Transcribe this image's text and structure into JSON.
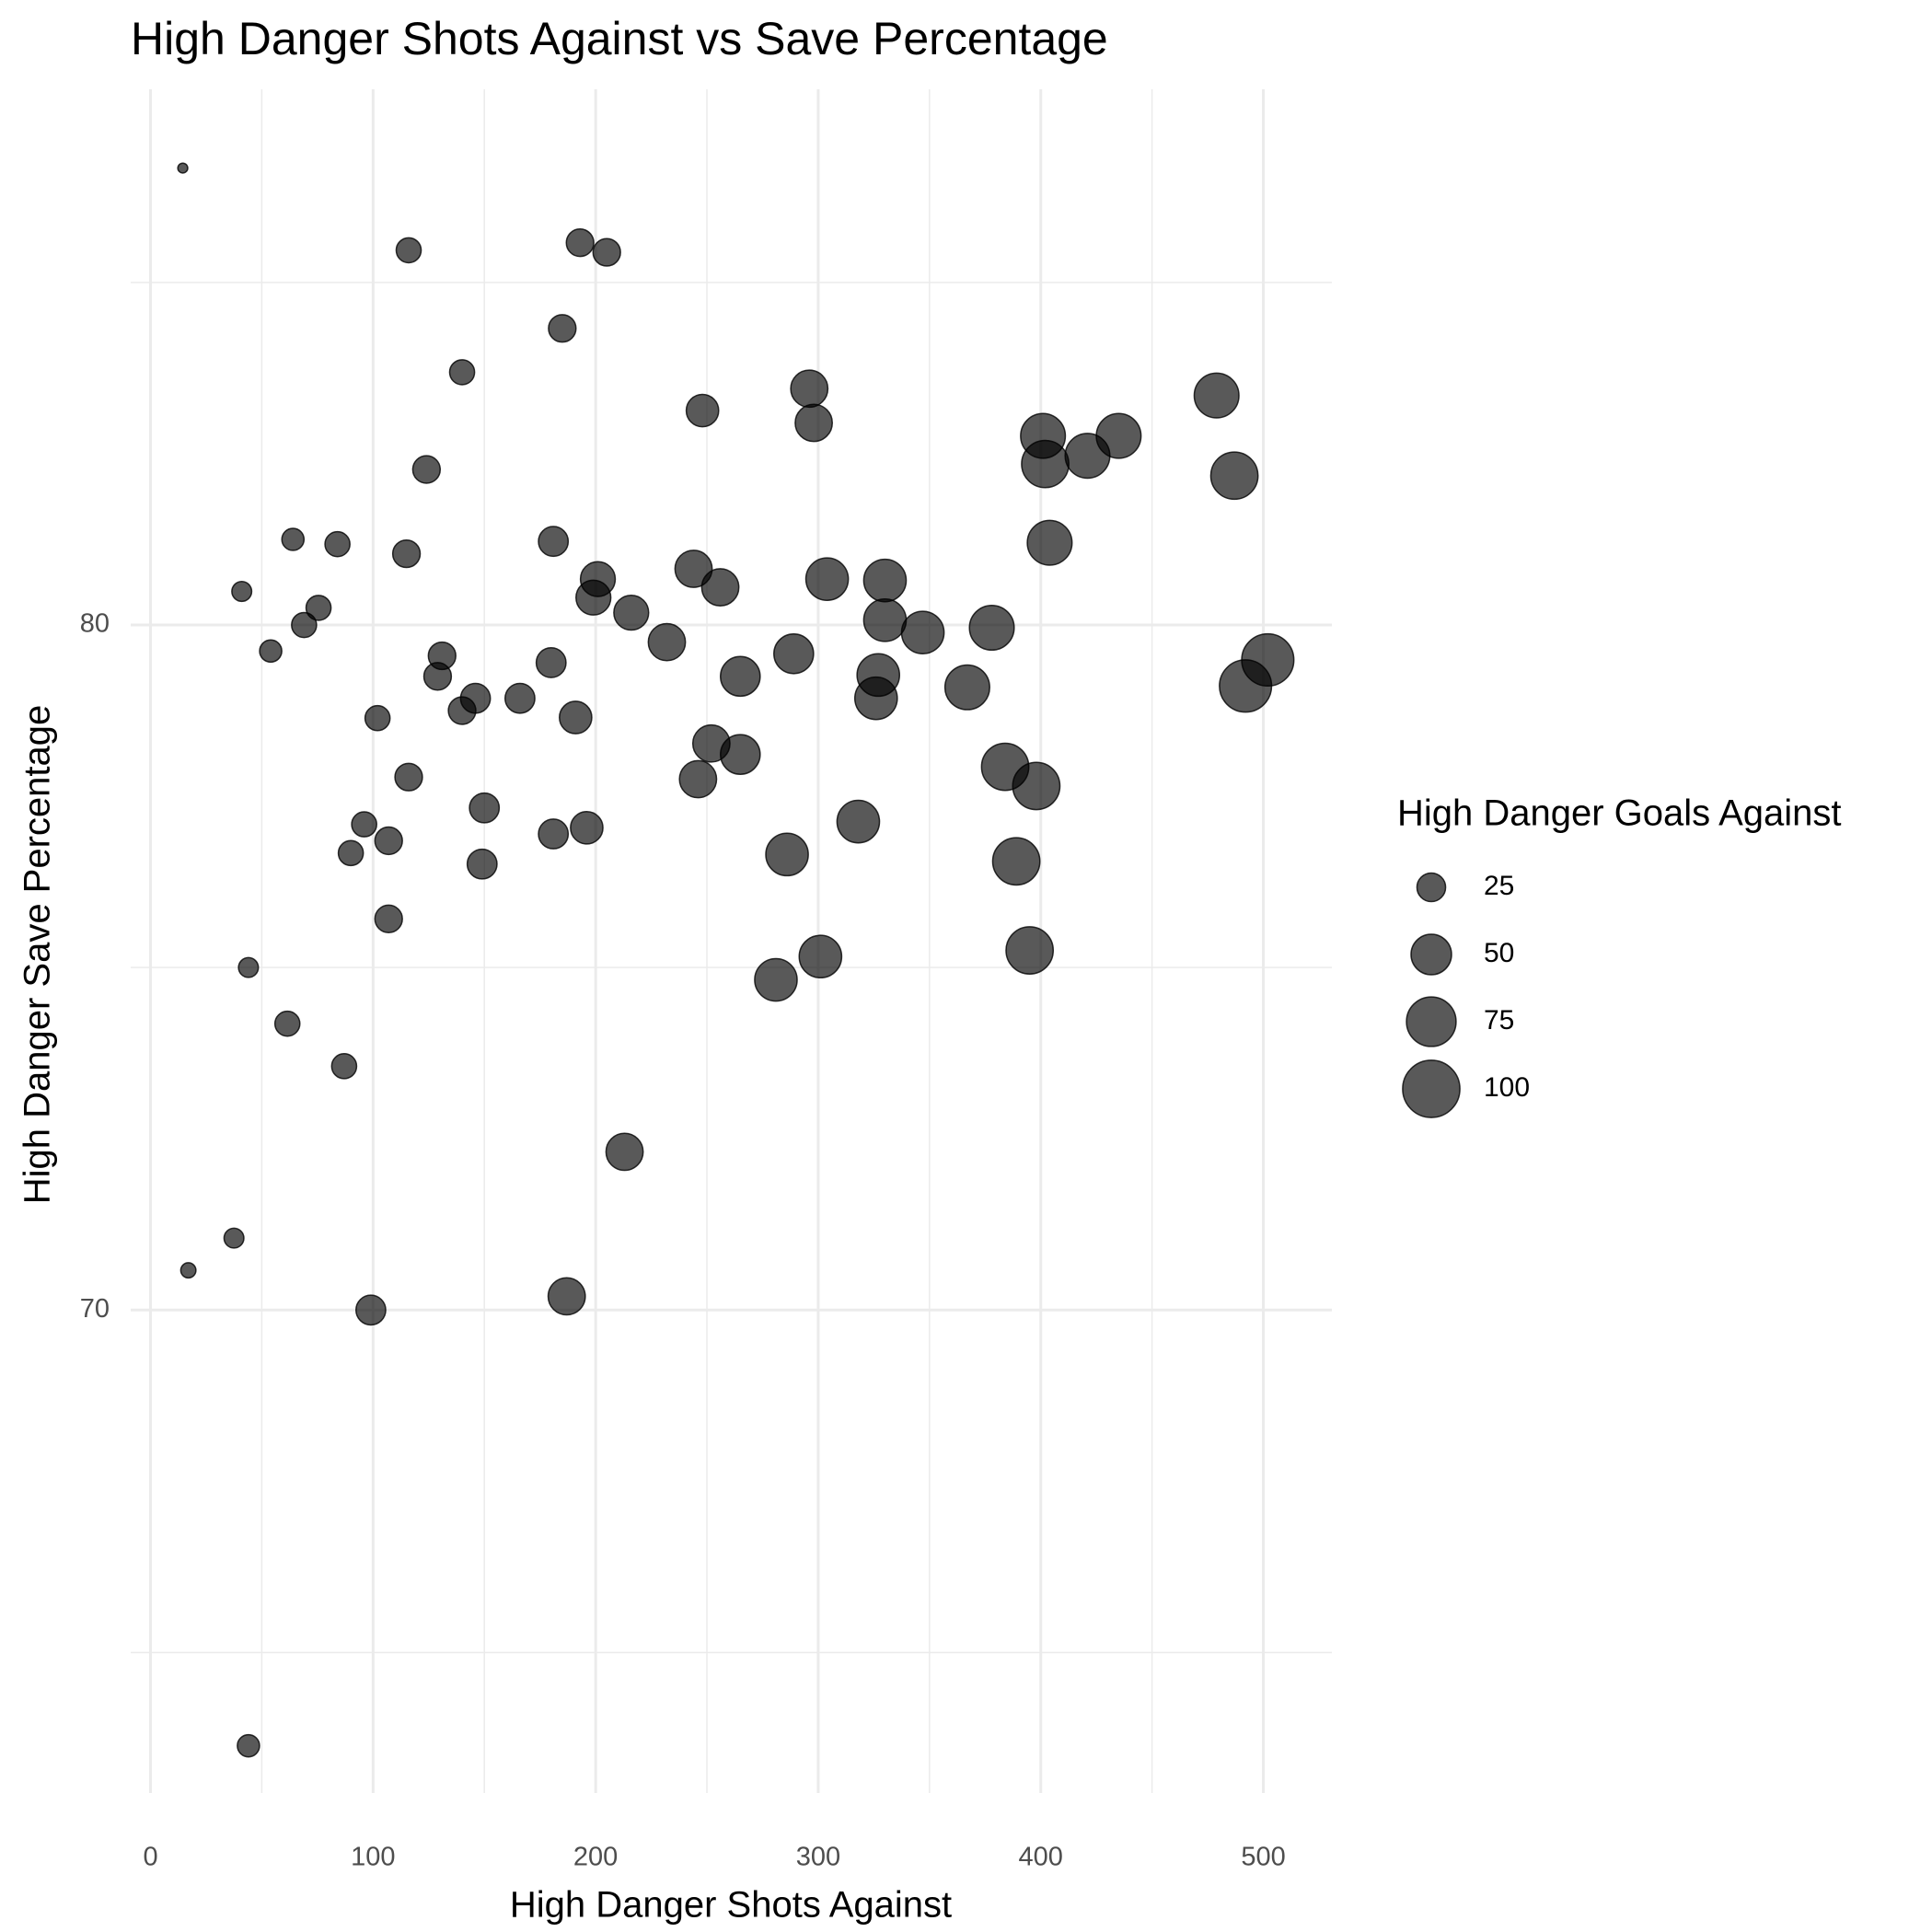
{
  "chart_data": {
    "type": "scatter",
    "title": "High Danger Shots Against vs Save Percentage",
    "x_label": "High Danger Shots Against",
    "y_label": "High Danger Save Percentage",
    "legend_title": "High Danger Goals Against",
    "color": "#000000",
    "alpha": 0.65,
    "grid": true,
    "xlim": [
      -8.9,
      530.8
    ],
    "xticks": [
      0,
      100,
      200,
      300,
      400,
      500
    ],
    "x_minor_grid": [
      50,
      150,
      250,
      350,
      450
    ],
    "ylim": [
      62.95,
      87.82
    ],
    "yticks": [
      70,
      80
    ],
    "y_minor_grid": [
      65,
      75,
      85
    ],
    "size_legend": [
      25,
      50,
      75,
      100
    ],
    "x": [
      14.5,
      116,
      193,
      205,
      185,
      140,
      248,
      296,
      298,
      124,
      64,
      84,
      115,
      181,
      41,
      75.5,
      69,
      54,
      201,
      199,
      216,
      244,
      256,
      232,
      304,
      330,
      330,
      347,
      378,
      289,
      131,
      129,
      146,
      140,
      166,
      180,
      191,
      102,
      265,
      327,
      326,
      367,
      492,
      502,
      252,
      265,
      246,
      116,
      150,
      384,
      398,
      96,
      107,
      90,
      181,
      196,
      149,
      318,
      286,
      389,
      107,
      301,
      395,
      281,
      44,
      61.5,
      87,
      213,
      37.5,
      17,
      99,
      187,
      44,
      401,
      402,
      421,
      435,
      479,
      487,
      404
    ],
    "y": [
      86.67,
      85.47,
      85.58,
      85.44,
      84.33,
      83.69,
      83.13,
      83.45,
      82.95,
      82.27,
      81.25,
      81.18,
      81.04,
      81.22,
      80.49,
      80.25,
      80,
      79.62,
      80.67,
      80.4,
      80.18,
      80.82,
      80.55,
      79.75,
      80.67,
      80.65,
      80.07,
      79.89,
      79.96,
      79.58,
      79.55,
      79.25,
      78.93,
      78.75,
      78.93,
      79.45,
      78.65,
      78.64,
      79.25,
      79.27,
      78.93,
      79.09,
      79.11,
      79.49,
      78.27,
      78.11,
      77.75,
      77.78,
      77.33,
      77.93,
      77.65,
      77.09,
      76.85,
      76.67,
      76.95,
      77.04,
      76.51,
      77.13,
      76.65,
      76.55,
      75.71,
      75.16,
      75.25,
      74.82,
      75,
      74.18,
      73.56,
      72.31,
      71.05,
      70.58,
      70,
      70.2,
      63.64,
      82.76,
      82.35,
      82.47,
      82.76,
      83.35,
      82.18,
      81.2
    ],
    "sizes": [
      3,
      19,
      23,
      23,
      23,
      19,
      32,
      42,
      42,
      23,
      15,
      19,
      23,
      27,
      12,
      19,
      19,
      15,
      37,
      37,
      37,
      42,
      42,
      42,
      55,
      55,
      55,
      55,
      61,
      48,
      23,
      23,
      27,
      23,
      27,
      27,
      32,
      19,
      48,
      55,
      55,
      61,
      83,
      83,
      42,
      48,
      42,
      23,
      27,
      68,
      68,
      19,
      23,
      19,
      27,
      32,
      27,
      55,
      55,
      68,
      23,
      55,
      68,
      55,
      12,
      19,
      19,
      42,
      12,
      7,
      27,
      42,
      15,
      61,
      68,
      61,
      61,
      61,
      68,
      61
    ]
  }
}
